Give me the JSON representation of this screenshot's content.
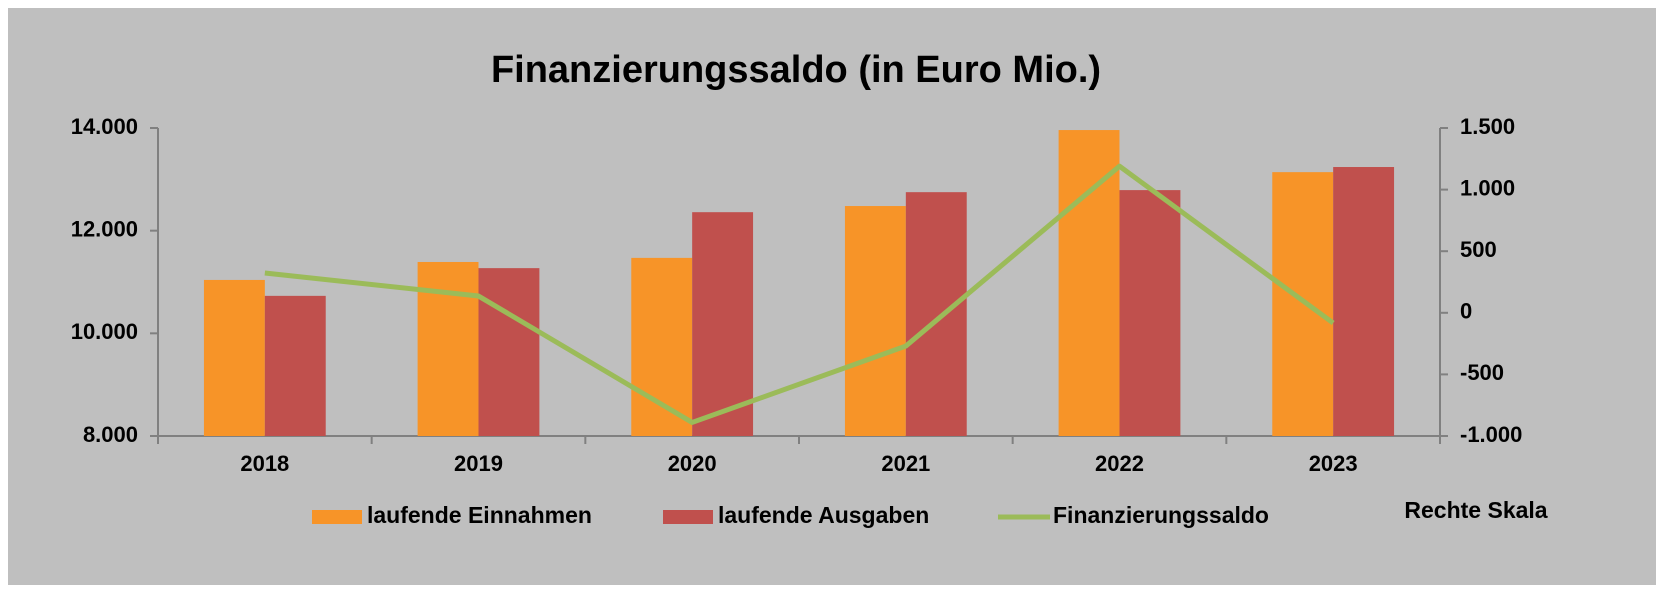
{
  "chart_data": {
    "type": "bar-line",
    "title": "Finanzierungssaldo (in Euro Mio.)",
    "annotation": "Rechte Skala",
    "categories": [
      "2018",
      "2019",
      "2020",
      "2021",
      "2022",
      "2023"
    ],
    "series": [
      {
        "name": "laufende Einnahmen",
        "type": "bar",
        "color": "#f79428",
        "values": [
          11040,
          11390,
          11470,
          12480,
          13960,
          13140
        ]
      },
      {
        "name": "laufende Ausgaben",
        "type": "bar",
        "color": "#c0504d",
        "values": [
          10730,
          11270,
          12360,
          12750,
          12790,
          13240
        ]
      },
      {
        "name": "Finanzierungssaldo",
        "type": "line",
        "axis": "y2",
        "color": "#9bbb59",
        "values": [
          323,
          136,
          -890,
          -270,
          1190,
          -83
        ]
      }
    ],
    "ylim": [
      8000,
      14000
    ],
    "yticks": [
      {
        "value": 8000,
        "label": "8.000"
      },
      {
        "value": 10000,
        "label": "10.000"
      },
      {
        "value": 12000,
        "label": "12.000"
      },
      {
        "value": 14000,
        "label": "14.000"
      }
    ],
    "y2lim": [
      -1000,
      1500
    ],
    "y2ticks": [
      {
        "value": -1000,
        "label": "-1.000"
      },
      -500,
      0,
      500,
      {
        "value": 1000,
        "label": "1.000"
      },
      {
        "value": 1500,
        "label": "1.500"
      }
    ],
    "legend": "bottom"
  }
}
